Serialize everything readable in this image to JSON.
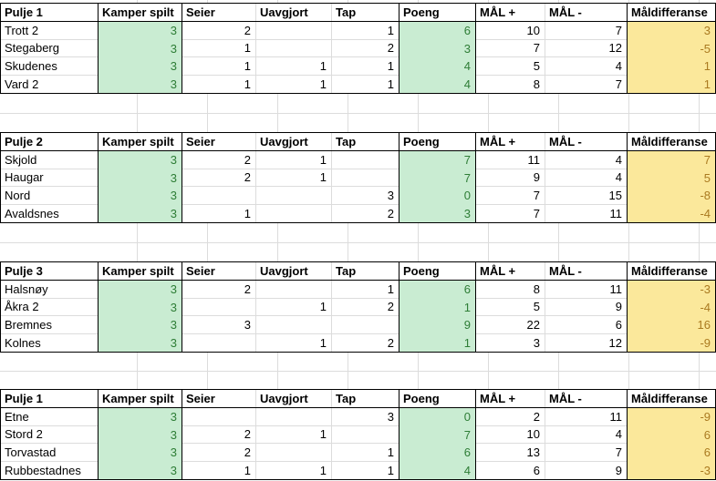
{
  "app": {
    "type": "spreadsheet-standings"
  },
  "colors": {
    "table_border": "#000000",
    "gridline": "#dcdcdc",
    "green_fill": "#c9ecd2",
    "green_text": "#2e7d36",
    "yellow_fill": "#fbe89b",
    "yellow_text": "#aa7a20",
    "header_text": "#000000"
  },
  "columns": [
    "Kamper spilt",
    "Seier",
    "Uavgjort",
    "Tap",
    "Poeng",
    "MÅL +",
    "MÅL -",
    "Måldifferanse"
  ],
  "tables": [
    {
      "title": "Pulje 1",
      "rows": [
        {
          "team": "Trott 2",
          "values": [
            "3",
            "2",
            "",
            "1",
            "6",
            "10",
            "7",
            "3"
          ]
        },
        {
          "team": "Stegaberg",
          "values": [
            "3",
            "1",
            "",
            "2",
            "3",
            "7",
            "12",
            "-5"
          ]
        },
        {
          "team": "Skudenes",
          "values": [
            "3",
            "1",
            "1",
            "1",
            "4",
            "5",
            "4",
            "1"
          ]
        },
        {
          "team": "Vard 2",
          "values": [
            "3",
            "1",
            "1",
            "1",
            "4",
            "8",
            "7",
            "1"
          ]
        }
      ]
    },
    {
      "title": "Pulje 2",
      "rows": [
        {
          "team": "Skjold",
          "values": [
            "3",
            "2",
            "1",
            "",
            "7",
            "11",
            "4",
            "7"
          ]
        },
        {
          "team": "Haugar",
          "values": [
            "3",
            "2",
            "1",
            "",
            "7",
            "9",
            "4",
            "5"
          ]
        },
        {
          "team": "Nord",
          "values": [
            "3",
            "",
            "",
            "3",
            "0",
            "7",
            "15",
            "-8"
          ]
        },
        {
          "team": "Avaldsnes",
          "values": [
            "3",
            "1",
            "",
            "2",
            "3",
            "7",
            "11",
            "-4"
          ]
        }
      ]
    },
    {
      "title": "Pulje 3",
      "rows": [
        {
          "team": "Halsnøy",
          "values": [
            "3",
            "2",
            "",
            "1",
            "6",
            "8",
            "11",
            "-3"
          ]
        },
        {
          "team": "Åkra 2",
          "values": [
            "3",
            "",
            "1",
            "2",
            "1",
            "5",
            "9",
            "-4"
          ]
        },
        {
          "team": "Bremnes",
          "values": [
            "3",
            "3",
            "",
            "",
            "9",
            "22",
            "6",
            "16"
          ]
        },
        {
          "team": "Kolnes",
          "values": [
            "3",
            "",
            "1",
            "2",
            "1",
            "3",
            "12",
            "-9"
          ]
        }
      ]
    },
    {
      "title": "Pulje 1",
      "rows": [
        {
          "team": "Etne",
          "values": [
            "3",
            "",
            "",
            "3",
            "0",
            "2",
            "11",
            "-9"
          ]
        },
        {
          "team": "Stord 2",
          "values": [
            "3",
            "2",
            "1",
            "",
            "7",
            "10",
            "4",
            "6"
          ]
        },
        {
          "team": "Torvastad",
          "values": [
            "3",
            "2",
            "",
            "1",
            "6",
            "13",
            "7",
            "6"
          ]
        },
        {
          "team": "Rubbestadnes",
          "values": [
            "3",
            "1",
            "1",
            "1",
            "4",
            "6",
            "9",
            "-3"
          ]
        }
      ]
    }
  ]
}
